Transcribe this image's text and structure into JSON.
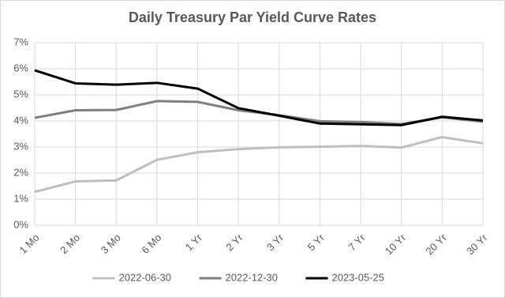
{
  "chart_data": {
    "type": "line",
    "title": "Daily Treasury Par Yield Curve Rates",
    "categories": [
      "1 Mo",
      "2 Mo",
      "3 Mo",
      "6 Mo",
      "1 Yr",
      "2 Yr",
      "3 Yr",
      "5 Yr",
      "7 Yr",
      "10 Yr",
      "20 Yr",
      "30 Yr"
    ],
    "series": [
      {
        "name": "2022-06-30",
        "color": "#bfbfbf",
        "values": [
          1.28,
          1.68,
          1.72,
          2.51,
          2.8,
          2.92,
          2.99,
          3.01,
          3.04,
          2.98,
          3.38,
          3.14
        ]
      },
      {
        "name": "2022-12-30",
        "color": "#7f7f7f",
        "values": [
          4.12,
          4.41,
          4.42,
          4.76,
          4.73,
          4.41,
          4.22,
          3.99,
          3.96,
          3.88,
          4.14,
          3.97
        ]
      },
      {
        "name": "2023-05-25",
        "color": "#000000",
        "values": [
          5.94,
          5.44,
          5.39,
          5.46,
          5.24,
          4.49,
          4.2,
          3.9,
          3.87,
          3.84,
          4.16,
          4.02
        ]
      }
    ],
    "ylim": [
      0,
      7
    ],
    "yticks": [
      {
        "value": 0,
        "label": "0%"
      },
      {
        "value": 1,
        "label": "1%"
      },
      {
        "value": 2,
        "label": "2%"
      },
      {
        "value": 3,
        "label": "3%"
      },
      {
        "value": 4,
        "label": "4%"
      },
      {
        "value": 5,
        "label": "5%"
      },
      {
        "value": 6,
        "label": "6%"
      },
      {
        "value": 7,
        "label": "7%"
      }
    ],
    "grid": true,
    "legend": "bottom"
  }
}
